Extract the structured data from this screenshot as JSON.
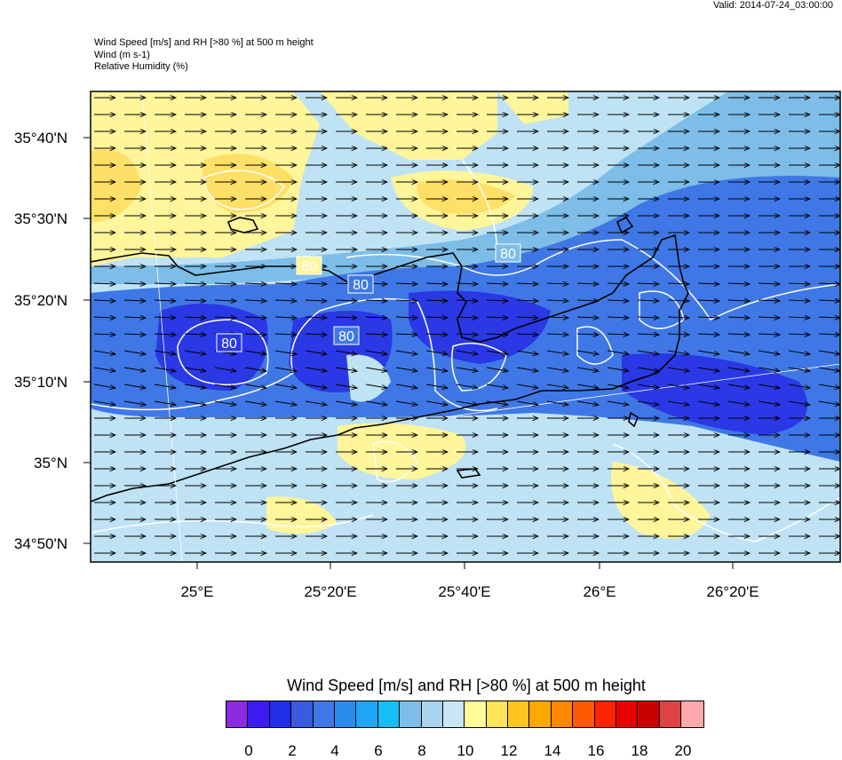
{
  "valid_text": "Valid: 2014-07-24_03:00:00",
  "titles": [
    "Wind Speed [m/s] and RH [>80 %] at 500 m height",
    "Wind   (m s-1)",
    "Relative Humidity   (%)"
  ],
  "map": {
    "lat_labels": [
      "35°40'N",
      "35°30'N",
      "35°20'N",
      "35°10'N",
      "35°N",
      "34°50'N"
    ],
    "lon_labels": [
      "25°E",
      "25°20'E",
      "25°40'E",
      "26°E",
      "26°20'E"
    ],
    "contour_labels": [
      "80",
      "80",
      "80",
      "80",
      "80"
    ],
    "wind_direction": "eastward",
    "colors": {
      "low_blue": "#2a38e6",
      "mid_blue": "#3a6ee6",
      "light_blue": "#bfe3f5",
      "yellow": "#fff59a",
      "deep_yellow": "#ffe066",
      "coast": "#000000",
      "rh_contour": "#ffffff"
    }
  },
  "colorbar": {
    "title": "Wind Speed [m/s] and RH [>80 %] at 500 m height",
    "colors": [
      "#8a2be2",
      "#3c1cf0",
      "#1f2ee8",
      "#3a5ae0",
      "#3f78e6",
      "#2b8cf0",
      "#1ea6f5",
      "#17bdf5",
      "#7dbde8",
      "#a8d3ee",
      "#c9e6f5",
      "#fffb9a",
      "#ffe459",
      "#ffc41f",
      "#ffa800",
      "#ff8800",
      "#ff5a00",
      "#ff2400",
      "#e60000",
      "#c80000",
      "#de4444",
      "#ffaaaa"
    ],
    "labels": [
      "0",
      "2",
      "4",
      "6",
      "8",
      "10",
      "12",
      "14",
      "16",
      "18",
      "20"
    ]
  }
}
